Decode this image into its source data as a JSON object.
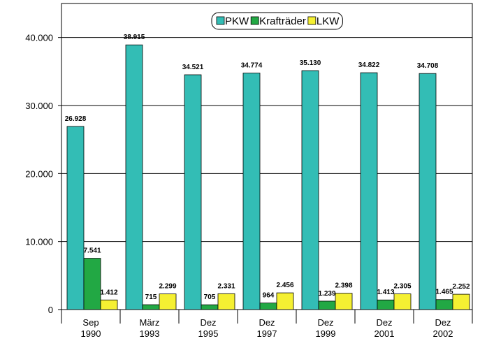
{
  "chart_data": {
    "type": "bar",
    "categories": [
      "Sep 1990",
      "März 1993",
      "Dez 1995",
      "Dez 1997",
      "Dez 1999",
      "Dez 2001",
      "Dez 2002"
    ],
    "series": [
      {
        "name": "PKW",
        "color": "#33bdb5",
        "values": [
          26928,
          38915,
          34521,
          34774,
          35130,
          34822,
          34708
        ],
        "value_labels": [
          "26.928",
          "38.915",
          "34.521",
          "34.774",
          "35.130",
          "34.822",
          "34.708"
        ]
      },
      {
        "name": "Krafträder",
        "color": "#22a844",
        "values": [
          7541,
          715,
          705,
          964,
          1239,
          1413,
          1465
        ],
        "value_labels": [
          "7.541",
          "715",
          "705",
          "964",
          "1.239",
          "1.413",
          "1.465"
        ]
      },
      {
        "name": "LKW",
        "color": "#f5f032",
        "values": [
          1412,
          2299,
          2331,
          2456,
          2398,
          2305,
          2252
        ],
        "value_labels": [
          "1.412",
          "2.299",
          "2.331",
          "2.456",
          "2.398",
          "2.305",
          "2.252"
        ]
      }
    ],
    "ylim": [
      0,
      45000
    ],
    "yticks": [
      0,
      {
        "value": 10000,
        "label": "10.000"
      },
      {
        "value": 20000,
        "label": "20.000"
      },
      {
        "value": 30000,
        "label": "30.000"
      },
      {
        "value": 40000,
        "label": "40.000"
      }
    ],
    "grid": true,
    "legend": "top"
  }
}
